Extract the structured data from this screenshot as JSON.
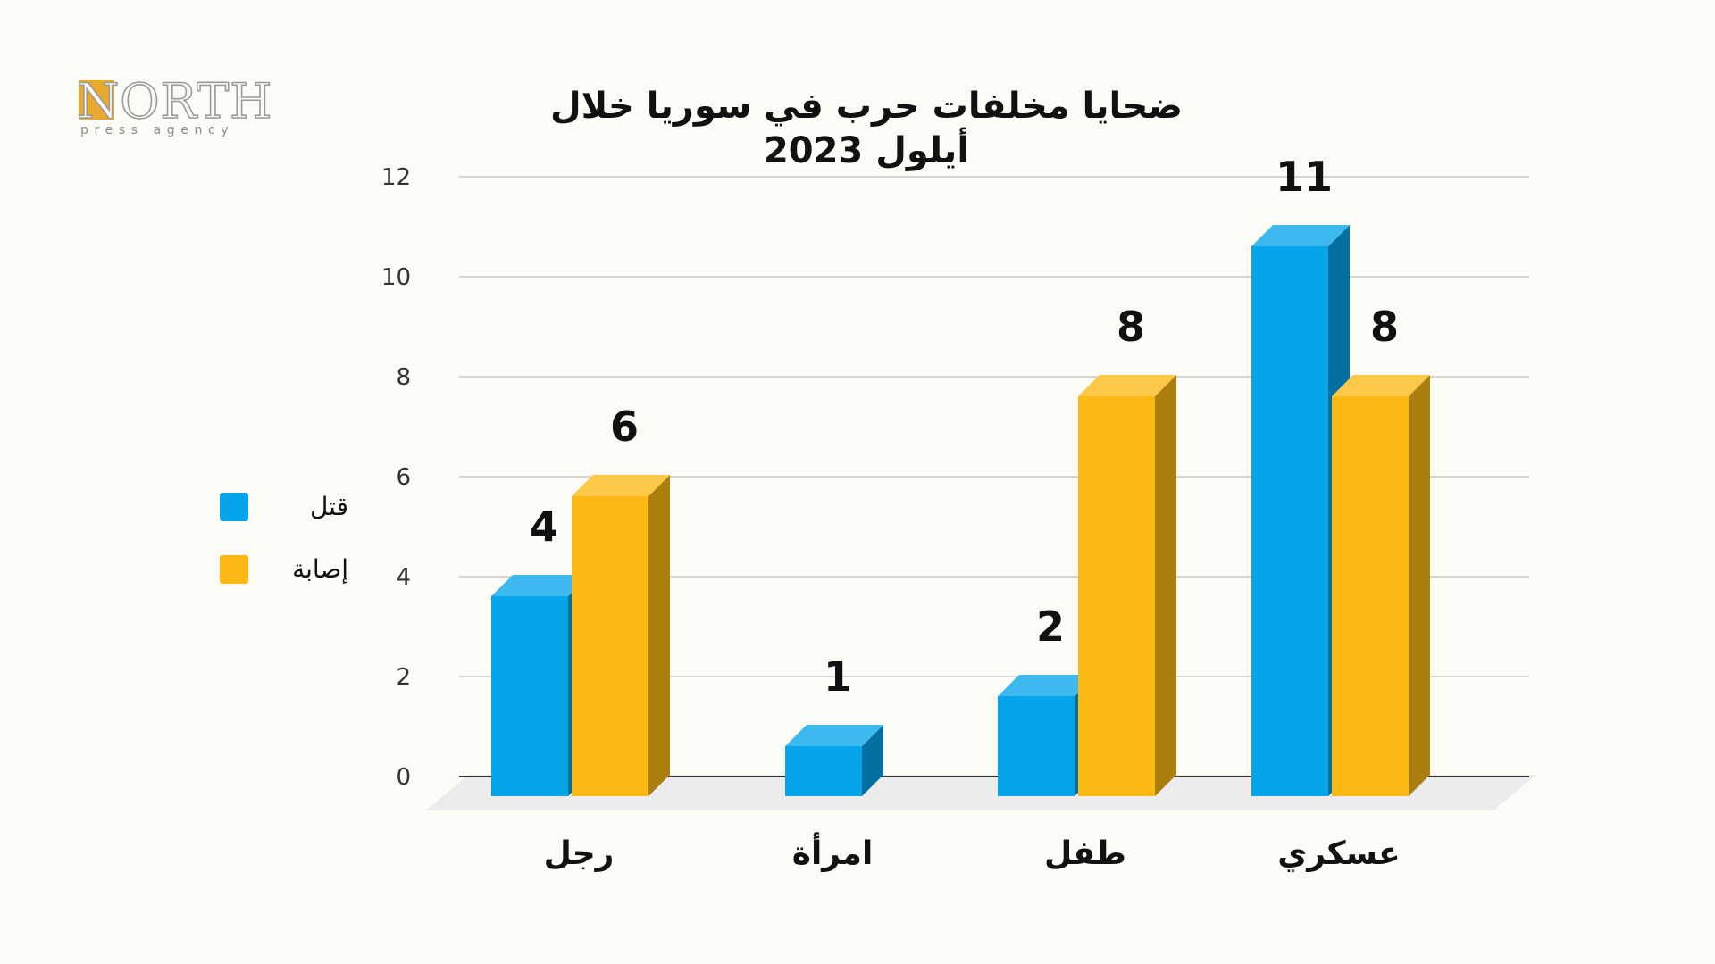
{
  "logo": {
    "wordmark": "NORTH",
    "tagline": "press agency"
  },
  "colors": {
    "killed": "#06a5ea",
    "injured": "#fdb913",
    "gridline": "#c8c8c8",
    "floor": "#ececec"
  },
  "chart_data": {
    "type": "bar",
    "title": "ضحايا مخلفات حرب في سوريا خلال أيلول 2023",
    "categories": [
      "رجل",
      "امرأة",
      "طفل",
      "عسكري"
    ],
    "series": [
      {
        "name": "قتل",
        "values": [
          4,
          1,
          2,
          11
        ]
      },
      {
        "name": "إصابة",
        "values": [
          6,
          0,
          8,
          8
        ]
      }
    ],
    "data_labels": [
      [
        "4",
        "6"
      ],
      [
        "1",
        ""
      ],
      [
        "2",
        "8"
      ],
      [
        "11",
        "8"
      ]
    ],
    "ylim": [
      0,
      12
    ],
    "yticks": [
      0,
      2,
      4,
      6,
      8,
      10,
      12
    ],
    "grid": true,
    "legend_position": "left",
    "style": "3d-bars"
  }
}
